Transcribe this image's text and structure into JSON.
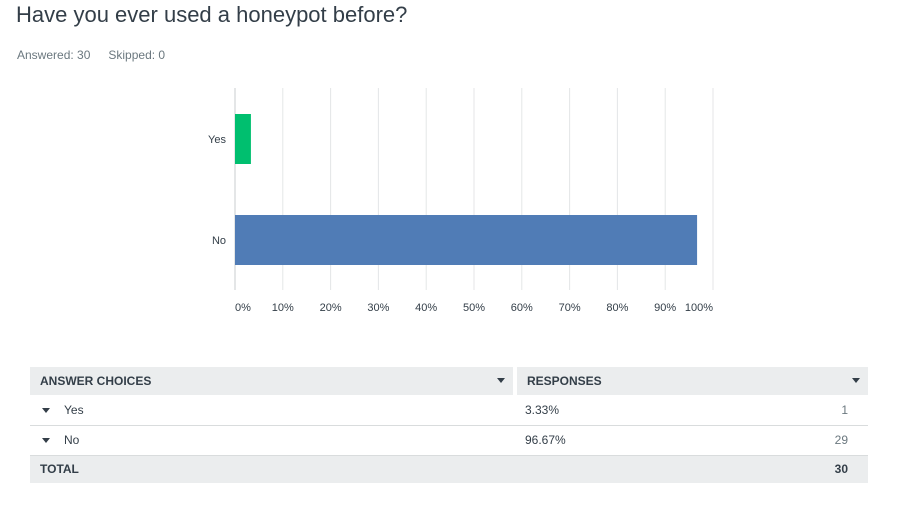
{
  "question": {
    "title": "Have you ever used a honeypot before?",
    "answered": "Answered: 30",
    "skipped": "Skipped: 0"
  },
  "chart_data": {
    "type": "bar",
    "orientation": "horizontal",
    "categories": [
      "Yes",
      "No"
    ],
    "values": [
      3.33,
      96.67
    ],
    "colors": [
      "#00bf6f",
      "#507cb6"
    ],
    "xlim": [
      0,
      100
    ],
    "xticks": [
      "0%",
      "10%",
      "20%",
      "30%",
      "40%",
      "50%",
      "60%",
      "70%",
      "80%",
      "90%",
      "100%"
    ],
    "grid": true
  },
  "table": {
    "headers": {
      "choices": "ANSWER CHOICES",
      "responses": "RESPONSES"
    },
    "rows": [
      {
        "choice": "Yes",
        "percent": "3.33%",
        "count": "1"
      },
      {
        "choice": "No",
        "percent": "96.67%",
        "count": "29"
      }
    ],
    "total": {
      "label": "TOTAL",
      "count": "30"
    }
  }
}
